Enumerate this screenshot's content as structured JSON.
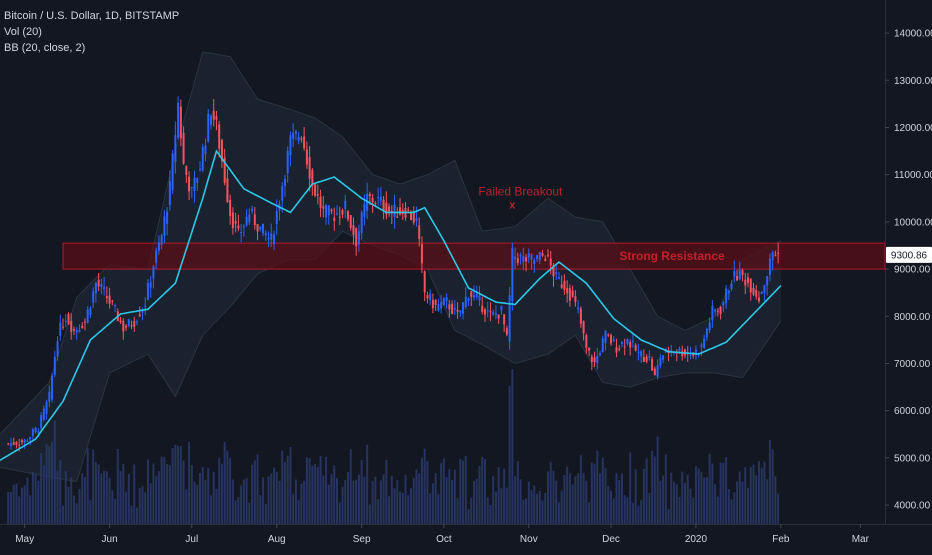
{
  "legend": {
    "symbol": "Bitcoin / U.S. Dollar, 1D, BITSTAMP",
    "vol": "Vol (20)",
    "bb": "BB (20, close, 2)"
  },
  "colors": {
    "background": "#131722",
    "up": "#2962ff",
    "down": "#f7525f",
    "bb_basis": "#2ec7e8",
    "bb_band_fill": "#1c2733",
    "resistance_fill": "#5a0f17",
    "resistance_border": "#b2182b",
    "annotation": "#c2202c",
    "volume": "#2a3a6a",
    "price_label_bg": "#ffffff",
    "price_label_text": "#131722"
  },
  "chart_data": {
    "type": "candlestick",
    "title": "Bitcoin / U.S. Dollar, 1D, BITSTAMP",
    "y_ticks": [
      "4000.00",
      "5000.00",
      "6000.00",
      "7000.00",
      "8000.00",
      "9000.00",
      "10000.00",
      "11000.00",
      "12000.00",
      "13000.00",
      "14000.00"
    ],
    "y_range": [
      3600,
      14700
    ],
    "x_ticks": [
      "May",
      "Jun",
      "Jul",
      "Aug",
      "Sep",
      "Oct",
      "Nov",
      "Dec",
      "2020",
      "Feb",
      "Mar"
    ],
    "x_range": [
      "2019-04-22",
      "2020-03-10"
    ],
    "last_price": "9300.86",
    "price_series": [
      [
        "2019-04-25",
        5300
      ],
      [
        "2019-05-01",
        5350
      ],
      [
        "2019-05-06",
        5650
      ],
      [
        "2019-05-10",
        6300
      ],
      [
        "2019-05-13",
        7600
      ],
      [
        "2019-05-16",
        8000
      ],
      [
        "2019-05-19",
        7700
      ],
      [
        "2019-05-23",
        7900
      ],
      [
        "2019-05-27",
        8700
      ],
      [
        "2019-05-30",
        8500
      ],
      [
        "2019-06-03",
        8100
      ],
      [
        "2019-06-06",
        7750
      ],
      [
        "2019-06-10",
        7900
      ],
      [
        "2019-06-14",
        8300
      ],
      [
        "2019-06-17",
        9100
      ],
      [
        "2019-06-20",
        9700
      ],
      [
        "2019-06-23",
        10700
      ],
      [
        "2019-06-26",
        12500
      ],
      [
        "2019-06-28",
        11200
      ],
      [
        "2019-07-01",
        10600
      ],
      [
        "2019-07-04",
        11200
      ],
      [
        "2019-07-08",
        12400
      ],
      [
        "2019-07-10",
        12000
      ],
      [
        "2019-07-12",
        11300
      ],
      [
        "2019-07-15",
        10200
      ],
      [
        "2019-07-18",
        9700
      ],
      [
        "2019-07-22",
        10200
      ],
      [
        "2019-07-26",
        9850
      ],
      [
        "2019-07-30",
        9600
      ],
      [
        "2019-08-02",
        10500
      ],
      [
        "2019-08-06",
        11700
      ],
      [
        "2019-08-10",
        11900
      ],
      [
        "2019-08-14",
        10800
      ],
      [
        "2019-08-18",
        10200
      ],
      [
        "2019-08-22",
        10150
      ],
      [
        "2019-08-26",
        10300
      ],
      [
        "2019-08-30",
        9600
      ],
      [
        "2019-09-03",
        10500
      ],
      [
        "2019-09-07",
        10450
      ],
      [
        "2019-09-12",
        10200
      ],
      [
        "2019-09-17",
        10250
      ],
      [
        "2019-09-21",
        10000
      ],
      [
        "2019-09-24",
        8500
      ],
      [
        "2019-09-28",
        8200
      ],
      [
        "2019-10-02",
        8300
      ],
      [
        "2019-10-06",
        8000
      ],
      [
        "2019-10-10",
        8500
      ],
      [
        "2019-10-14",
        8300
      ],
      [
        "2019-10-18",
        8000
      ],
      [
        "2019-10-22",
        8100
      ],
      [
        "2019-10-24",
        7500
      ],
      [
        "2019-10-26",
        9300
      ],
      [
        "2019-10-30",
        9200
      ],
      [
        "2019-11-03",
        9200
      ],
      [
        "2019-11-07",
        9300
      ],
      [
        "2019-11-11",
        8800
      ],
      [
        "2019-11-15",
        8600
      ],
      [
        "2019-11-19",
        8100
      ],
      [
        "2019-11-22",
        7300
      ],
      [
        "2019-11-25",
        7000
      ],
      [
        "2019-11-29",
        7600
      ],
      [
        "2019-12-03",
        7350
      ],
      [
        "2019-12-07",
        7500
      ],
      [
        "2019-12-11",
        7200
      ],
      [
        "2019-12-15",
        7100
      ],
      [
        "2019-12-17",
        6700
      ],
      [
        "2019-12-19",
        7150
      ],
      [
        "2019-12-23",
        7300
      ],
      [
        "2019-12-27",
        7250
      ],
      [
        "2019-12-31",
        7200
      ],
      [
        "2020-01-03",
        7350
      ],
      [
        "2020-01-07",
        8100
      ],
      [
        "2020-01-10",
        8150
      ],
      [
        "2020-01-14",
        8800
      ],
      [
        "2020-01-17",
        8900
      ],
      [
        "2020-01-21",
        8650
      ],
      [
        "2020-01-24",
        8400
      ],
      [
        "2020-01-27",
        8900
      ],
      [
        "2020-01-29",
        9350
      ],
      [
        "2020-01-31",
        9300
      ]
    ],
    "bb_basis": [
      [
        "2019-04-22",
        4950
      ],
      [
        "2019-05-05",
        5400
      ],
      [
        "2019-05-15",
        6200
      ],
      [
        "2019-05-25",
        7500
      ],
      [
        "2019-06-05",
        8050
      ],
      [
        "2019-06-15",
        8150
      ],
      [
        "2019-06-25",
        8700
      ],
      [
        "2019-07-05",
        10500
      ],
      [
        "2019-07-10",
        11500
      ],
      [
        "2019-07-20",
        10700
      ],
      [
        "2019-07-30",
        10400
      ],
      [
        "2019-08-06",
        10200
      ],
      [
        "2019-08-14",
        10800
      ],
      [
        "2019-08-22",
        10950
      ],
      [
        "2019-09-01",
        10500
      ],
      [
        "2019-09-10",
        10200
      ],
      [
        "2019-09-20",
        10200
      ],
      [
        "2019-09-24",
        10300
      ],
      [
        "2019-10-01",
        9600
      ],
      [
        "2019-10-10",
        8600
      ],
      [
        "2019-10-20",
        8300
      ],
      [
        "2019-10-27",
        8250
      ],
      [
        "2019-11-05",
        8800
      ],
      [
        "2019-11-12",
        9150
      ],
      [
        "2019-11-22",
        8700
      ],
      [
        "2019-12-02",
        7950
      ],
      [
        "2019-12-12",
        7500
      ],
      [
        "2019-12-22",
        7250
      ],
      [
        "2020-01-02",
        7200
      ],
      [
        "2020-01-12",
        7450
      ],
      [
        "2020-01-22",
        8050
      ],
      [
        "2020-02-01",
        8650
      ]
    ],
    "bb_upper": [
      [
        "2019-04-22",
        5500
      ],
      [
        "2019-05-10",
        6600
      ],
      [
        "2019-05-20",
        8400
      ],
      [
        "2019-06-01",
        9100
      ],
      [
        "2019-06-15",
        9000
      ],
      [
        "2019-06-25",
        11500
      ],
      [
        "2019-07-05",
        13600
      ],
      [
        "2019-07-15",
        13500
      ],
      [
        "2019-07-25",
        12600
      ],
      [
        "2019-08-05",
        12400
      ],
      [
        "2019-08-15",
        12200
      ],
      [
        "2019-08-25",
        11800
      ],
      [
        "2019-09-05",
        11000
      ],
      [
        "2019-09-15",
        10800
      ],
      [
        "2019-09-25",
        11000
      ],
      [
        "2019-10-05",
        11300
      ],
      [
        "2019-10-15",
        9800
      ],
      [
        "2019-10-27",
        9900
      ],
      [
        "2019-11-08",
        10500
      ],
      [
        "2019-11-18",
        10100
      ],
      [
        "2019-11-28",
        10000
      ],
      [
        "2019-12-08",
        9000
      ],
      [
        "2019-12-18",
        8000
      ],
      [
        "2019-12-28",
        7700
      ],
      [
        "2020-01-08",
        8000
      ],
      [
        "2020-01-18",
        9200
      ],
      [
        "2020-02-01",
        9600
      ]
    ],
    "bb_lower": [
      [
        "2019-04-22",
        4800
      ],
      [
        "2019-05-10",
        4600
      ],
      [
        "2019-05-20",
        4500
      ],
      [
        "2019-06-01",
        6800
      ],
      [
        "2019-06-15",
        7200
      ],
      [
        "2019-06-25",
        6300
      ],
      [
        "2019-07-05",
        7600
      ],
      [
        "2019-07-15",
        8200
      ],
      [
        "2019-07-25",
        8900
      ],
      [
        "2019-08-05",
        9200
      ],
      [
        "2019-08-15",
        9200
      ],
      [
        "2019-08-25",
        9800
      ],
      [
        "2019-09-05",
        9500
      ],
      [
        "2019-09-15",
        9300
      ],
      [
        "2019-09-25",
        9000
      ],
      [
        "2019-10-05",
        7700
      ],
      [
        "2019-10-15",
        7400
      ],
      [
        "2019-10-27",
        7000
      ],
      [
        "2019-11-08",
        7200
      ],
      [
        "2019-11-18",
        7600
      ],
      [
        "2019-11-28",
        6600
      ],
      [
        "2019-12-08",
        6500
      ],
      [
        "2019-12-18",
        6700
      ],
      [
        "2019-12-28",
        6800
      ],
      [
        "2020-01-08",
        6800
      ],
      [
        "2020-01-18",
        6700
      ],
      [
        "2020-02-01",
        7900
      ]
    ],
    "annotations": {
      "resistance": {
        "label": "Strong Resistance",
        "low": 9000,
        "high": 9550,
        "from": "2019-05-15",
        "to": "2020-03-10"
      },
      "breakout": {
        "label": "Failed Breakout",
        "marker": "x",
        "date": "2019-10-26",
        "price": 10350
      }
    }
  }
}
